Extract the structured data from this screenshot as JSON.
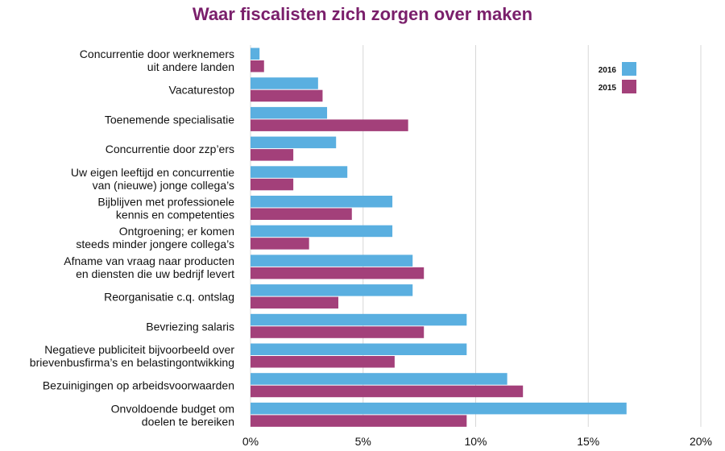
{
  "chart_data": {
    "type": "bar",
    "orientation": "horizontal",
    "title": "Waar fiscalisten zich zorgen over maken",
    "xlabel": "",
    "ylabel": "",
    "xlim": [
      0,
      20
    ],
    "x_ticks": [
      0,
      5,
      10,
      15,
      20
    ],
    "x_tick_labels": [
      "0%",
      "5%",
      "10%",
      "15%",
      "20%"
    ],
    "grid": true,
    "legend_position": "top-right",
    "categories": [
      [
        "Concurrentie door werknemers",
        "uit andere landen"
      ],
      [
        "Vacaturestop"
      ],
      [
        "Toenemende specialisatie"
      ],
      [
        "Concurrentie door zzp’ers"
      ],
      [
        "Uw eigen leeftijd en concurrentie",
        "van (nieuwe) jonge collega’s"
      ],
      [
        "Bijblijven met professionele",
        "kennis en competenties"
      ],
      [
        "Ontgroening; er komen",
        "steeds minder jongere collega’s"
      ],
      [
        "Afname van vraag naar producten",
        "en diensten die uw bedrijf levert"
      ],
      [
        "Reorganisatie c.q. ontslag"
      ],
      [
        "Bevriezing salaris"
      ],
      [
        "Negatieve publiciteit bijvoorbeeld over",
        "brievenbusfirma’s en belastingontwikking"
      ],
      [
        "Bezuinigingen op arbeidsvoorwaarden"
      ],
      [
        "Onvoldoende budget om",
        "doelen te bereiken"
      ]
    ],
    "series": [
      {
        "name": "2016",
        "color": "#5aafe0",
        "values": [
          0.4,
          3.0,
          3.4,
          3.8,
          4.3,
          6.3,
          6.3,
          7.2,
          7.2,
          9.6,
          9.6,
          11.4,
          16.7
        ]
      },
      {
        "name": "2015",
        "color": "#a3407a",
        "values": [
          0.6,
          3.2,
          7.0,
          1.9,
          1.9,
          4.5,
          2.6,
          7.7,
          3.9,
          7.7,
          6.4,
          12.1,
          9.6
        ]
      }
    ]
  }
}
